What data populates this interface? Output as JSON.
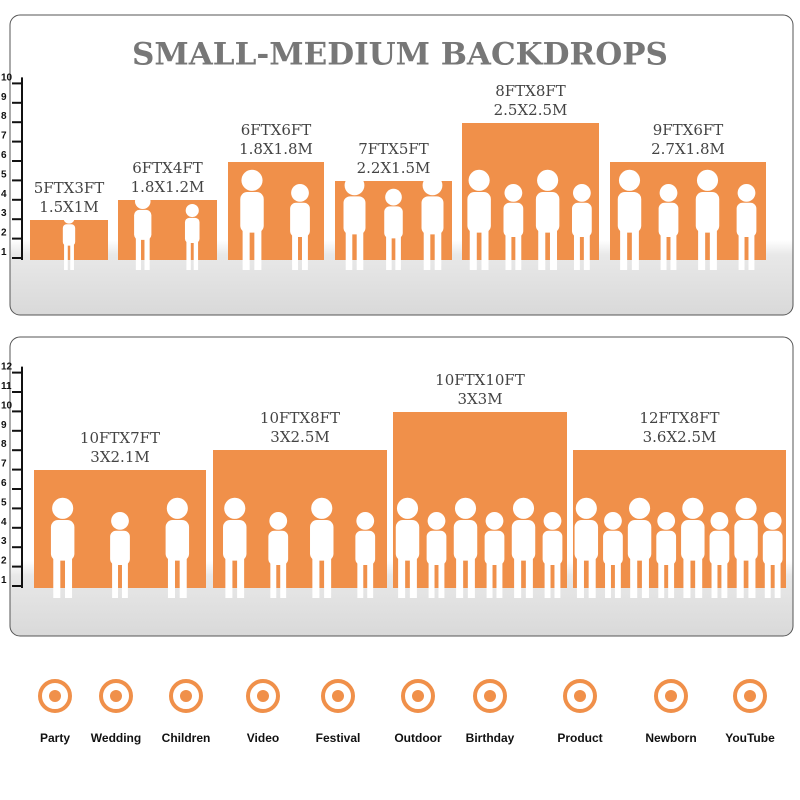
{
  "title": "SMALL-MEDIUM BACKDROPS",
  "panels": [
    {
      "ruler": [
        1,
        2,
        3,
        4,
        5,
        6,
        7,
        8,
        9,
        10
      ],
      "backdrops": [
        {
          "size_ft": "5FTX3FT",
          "size_m": "1.5X1M"
        },
        {
          "size_ft": "6FTX4FT",
          "size_m": "1.8X1.2M"
        },
        {
          "size_ft": "6FTX6FT",
          "size_m": "1.8X1.8M"
        },
        {
          "size_ft": "7FTX5FT",
          "size_m": "2.2X1.5M"
        },
        {
          "size_ft": "8FTX8FT",
          "size_m": "2.5X2.5M"
        },
        {
          "size_ft": "9FTX6FT",
          "size_m": "2.7X1.8M"
        }
      ]
    },
    {
      "ruler": [
        1,
        2,
        3,
        4,
        5,
        6,
        7,
        8,
        9,
        10,
        11,
        12
      ],
      "backdrops": [
        {
          "size_ft": "10FTX7FT",
          "size_m": "3X2.1M"
        },
        {
          "size_ft": "10FTX8FT",
          "size_m": "3X2.5M"
        },
        {
          "size_ft": "10FTX10FT",
          "size_m": "3X3M"
        },
        {
          "size_ft": "12FTX8FT",
          "size_m": "3.6X2.5M"
        }
      ]
    }
  ],
  "uses": [
    "Party",
    "Wedding",
    "Children",
    "Video",
    "Festival",
    "Outdoor",
    "Birthday",
    "Product",
    "Newborn",
    "YouTube"
  ]
}
